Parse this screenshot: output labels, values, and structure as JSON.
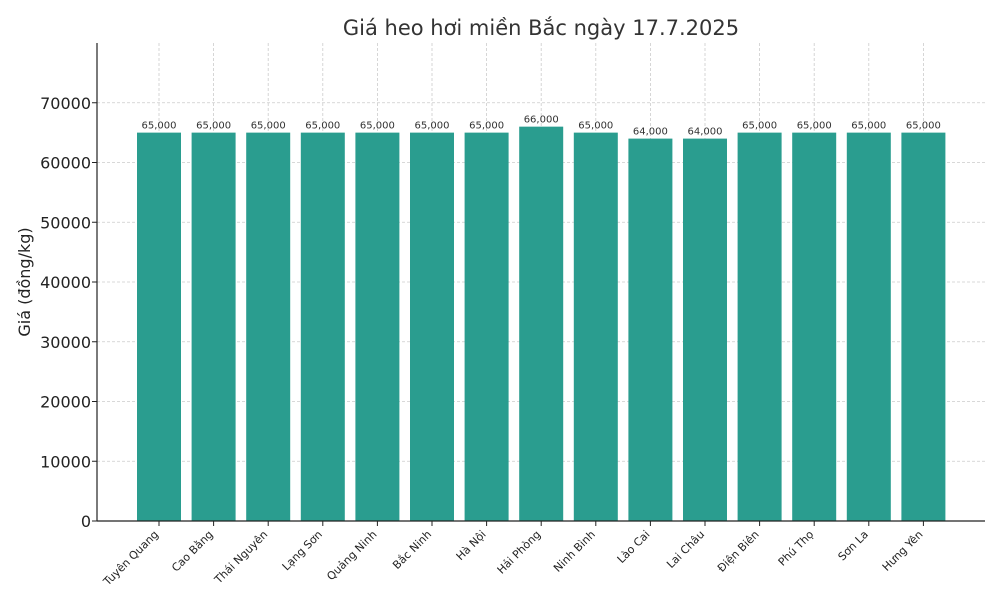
{
  "chart_data": {
    "type": "bar",
    "title": "Giá heo hơi miền Bắc ngày 17.7.2025",
    "xlabel": "",
    "ylabel": "Giá (đồng/kg)",
    "ylim": [
      0,
      80000
    ],
    "yticks": [
      0,
      10000,
      20000,
      30000,
      40000,
      50000,
      60000,
      70000
    ],
    "grid": true,
    "bar_color": "#2a9d8f",
    "categories": [
      "Tuyên Quang",
      "Cao Bằng",
      "Thái Nguyên",
      "Lạng Sơn",
      "Quảng Ninh",
      "Bắc Ninh",
      "Hà Nội",
      "Hải Phòng",
      "Ninh Bình",
      "Lào Cai",
      "Lai Châu",
      "Điện Biên",
      "Phú Thọ",
      "Sơn La",
      "Hưng Yên"
    ],
    "values": [
      65000,
      65000,
      65000,
      65000,
      65000,
      65000,
      65000,
      66000,
      65000,
      64000,
      64000,
      65000,
      65000,
      65000,
      65000
    ],
    "data_labels": [
      "65,000",
      "65,000",
      "65,000",
      "65,000",
      "65,000",
      "65,000",
      "65,000",
      "66,000",
      "65,000",
      "64,000",
      "64,000",
      "65,000",
      "65,000",
      "65,000",
      "65,000"
    ]
  }
}
